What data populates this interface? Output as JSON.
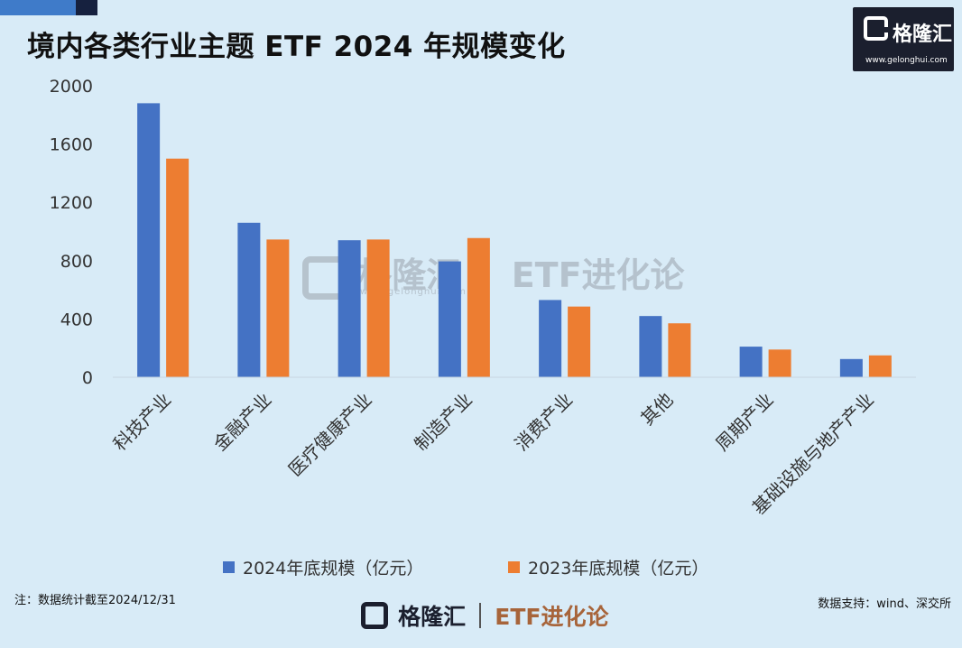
{
  "header": {
    "title": "境内各类行业主题 ETF 2024 年规模变化"
  },
  "brand": {
    "logo_text": "格隆汇",
    "logo_url": "www.gelonghui.com",
    "watermark_url": "www.gelonghui.com",
    "watermark_brand": "格隆汇",
    "watermark_tag": "ETF进化论",
    "bottom_brand": "格隆汇",
    "bottom_tag": "ETF进化论"
  },
  "footer": {
    "note": "注：数据统计截至2024/12/31",
    "source": "数据支持：wind、深交所"
  },
  "colors": {
    "series_2024": "#4472c4",
    "series_2023": "#ed7d31",
    "background": "#d8ebf7"
  },
  "chart_data": {
    "type": "bar",
    "categories": [
      "科技产业",
      "金融产业",
      "医疗健康产业",
      "制造产业",
      "消费产业",
      "其他",
      "周期产业",
      "基础设施与地产产业"
    ],
    "series": [
      {
        "name": "2024年底规模（亿元）",
        "values": [
          1880,
          1060,
          940,
          795,
          530,
          420,
          210,
          125
        ]
      },
      {
        "name": "2023年底规模（亿元）",
        "values": [
          1500,
          945,
          945,
          955,
          485,
          370,
          190,
          150
        ]
      }
    ],
    "yticks": [
      "0",
      "400",
      "800",
      "1200",
      "1600",
      "2000"
    ],
    "ylim": [
      0,
      2000
    ],
    "grid": false,
    "legend_position": "bottom"
  }
}
